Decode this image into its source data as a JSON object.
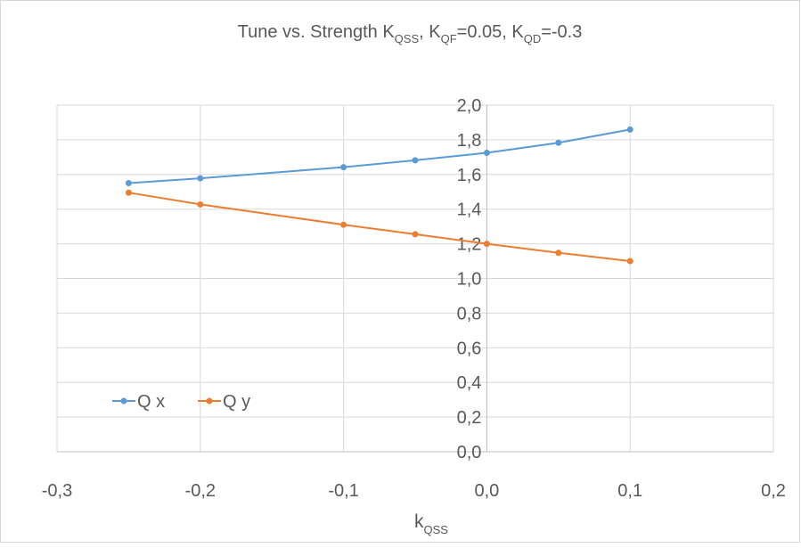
{
  "chart_data": {
    "type": "scatter",
    "title": {
      "main": "Tune vs. Strength K",
      "main_sub": "QSS",
      "sep1": ",  K",
      "qf_sub": "QF",
      "qf_value": "=0.05, K",
      "qd_sub": "QD",
      "qd_value": "=-0.3"
    },
    "xlabel": {
      "main": "k",
      "sub": "QSS"
    },
    "ylabel": "",
    "xlim": [
      -0.3,
      0.2
    ],
    "ylim": [
      0.0,
      2.0
    ],
    "x_ticks": [
      -0.3,
      -0.2,
      -0.1,
      0.0,
      0.1,
      0.2
    ],
    "x_tick_labels": [
      "-0,3",
      "-0,2",
      "-0,1",
      "0,0",
      "0,1",
      "0,2"
    ],
    "y_ticks": [
      0.0,
      0.2,
      0.4,
      0.6,
      0.8,
      1.0,
      1.2,
      1.4,
      1.6,
      1.8,
      2.0
    ],
    "y_tick_labels": [
      "0,0",
      "0,2",
      "0,4",
      "0,6",
      "0,8",
      "1,0",
      "1,2",
      "1,4",
      "1,6",
      "1,8",
      "2,0"
    ],
    "grid": true,
    "legend_position": "left",
    "series": [
      {
        "name": "Q x",
        "color": "#5b9bd5",
        "x": [
          -0.25,
          -0.2,
          -0.1,
          -0.05,
          0.0,
          0.05,
          0.1
        ],
        "y": [
          1.55,
          1.578,
          1.642,
          1.682,
          1.725,
          1.783,
          1.859
        ]
      },
      {
        "name": "Q y",
        "color": "#ed7d31",
        "x": [
          -0.25,
          -0.2,
          -0.1,
          -0.05,
          0.0,
          0.05,
          0.1
        ],
        "y": [
          1.495,
          1.427,
          1.31,
          1.255,
          1.2,
          1.148,
          1.1
        ]
      }
    ]
  }
}
